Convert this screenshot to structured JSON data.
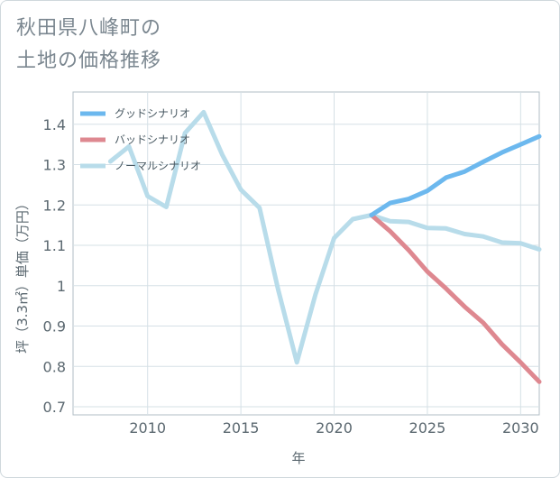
{
  "title_lines": [
    "秋田県八峰町の",
    "土地の価格推移"
  ],
  "chart_data": {
    "type": "line",
    "xlabel": "年",
    "ylabel": "坪（3.3㎡）単価（万円）",
    "xlim": [
      2006,
      2031
    ],
    "ylim": [
      0.68,
      1.48
    ],
    "xticks": [
      2010,
      2015,
      2020,
      2025,
      2030
    ],
    "yticks": [
      0.7,
      0.8,
      0.9,
      1,
      1.1,
      1.2,
      1.3,
      1.4
    ],
    "ytick_labels": [
      "0.7",
      "0.8",
      "0.9",
      "1",
      "1.1",
      "1.2",
      "1.3",
      "1.4"
    ],
    "grid": true,
    "legend_position": "top-left",
    "series": [
      {
        "name": "グッドシナリオ",
        "color": "#6cb8ee",
        "x": [
          2022,
          2023,
          2024,
          2025,
          2026,
          2027,
          2028,
          2029,
          2030,
          2031
        ],
        "values": [
          1.175,
          1.205,
          1.215,
          1.235,
          1.268,
          1.283,
          1.307,
          1.33,
          1.35,
          1.37
        ]
      },
      {
        "name": "バッドシナリオ",
        "color": "#de8890",
        "x": [
          2022,
          2023,
          2024,
          2025,
          2026,
          2027,
          2028,
          2029,
          2030,
          2031
        ],
        "values": [
          1.175,
          1.135,
          1.088,
          1.035,
          0.993,
          0.948,
          0.908,
          0.855,
          0.81,
          0.762
        ]
      },
      {
        "name": "ノーマルシナリオ",
        "color": "#b8dcea",
        "x": [
          2008,
          2009,
          2010,
          2011,
          2012,
          2013,
          2014,
          2015,
          2016,
          2017,
          2018,
          2019,
          2020,
          2021,
          2022,
          2023,
          2024,
          2025,
          2026,
          2027,
          2028,
          2029,
          2030,
          2031
        ],
        "values": [
          1.308,
          1.345,
          1.222,
          1.195,
          1.378,
          1.43,
          1.325,
          1.238,
          1.193,
          0.99,
          0.81,
          0.978,
          1.118,
          1.165,
          1.175,
          1.16,
          1.158,
          1.143,
          1.142,
          1.128,
          1.122,
          1.107,
          1.105,
          1.09
        ]
      }
    ]
  }
}
